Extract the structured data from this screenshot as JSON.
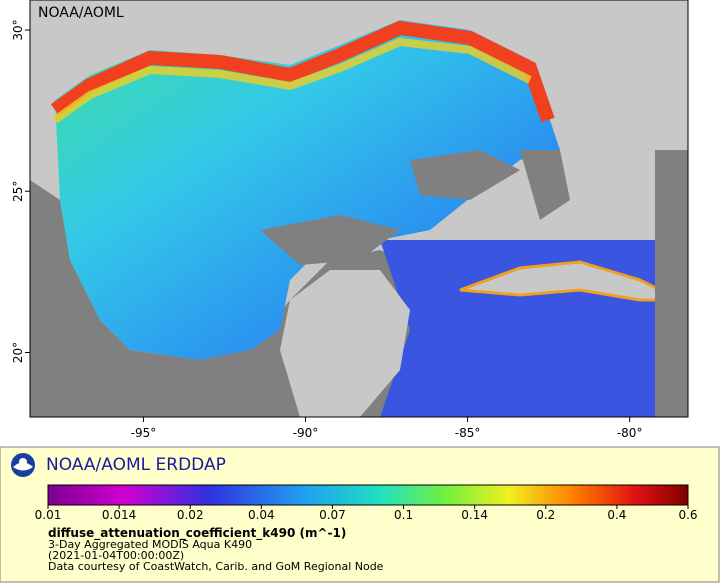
{
  "map": {
    "watermark": "NOAA/AOML",
    "xlim": [
      -98.5,
      -78.2
    ],
    "ylim": [
      18,
      30.93
    ],
    "xticks": [
      {
        "value": -95,
        "label": "-95°"
      },
      {
        "value": -90,
        "label": "-90°"
      },
      {
        "value": -85,
        "label": "-85°"
      },
      {
        "value": -80,
        "label": "-80°"
      }
    ],
    "yticks": [
      {
        "value": 20,
        "label": "20°"
      },
      {
        "value": 25,
        "label": "25°"
      },
      {
        "value": 30,
        "label": "30°"
      }
    ]
  },
  "legend": {
    "title": "NOAA/AOML ERDDAP",
    "colorbar_ticks": [
      0.01,
      0.014,
      0.02,
      0.04,
      0.07,
      0.1,
      0.14,
      0.2,
      0.4,
      0.6
    ],
    "variable": "diffuse_attenuation_coefficient_k490 (m^-1)",
    "dataset": "3-Day Aggregated MODIS Aqua K490",
    "time": "(2021-01-04T00:00:00Z)",
    "credit": "Data courtesy of CoastWatch, Carib. and GoM Regional Node"
  }
}
